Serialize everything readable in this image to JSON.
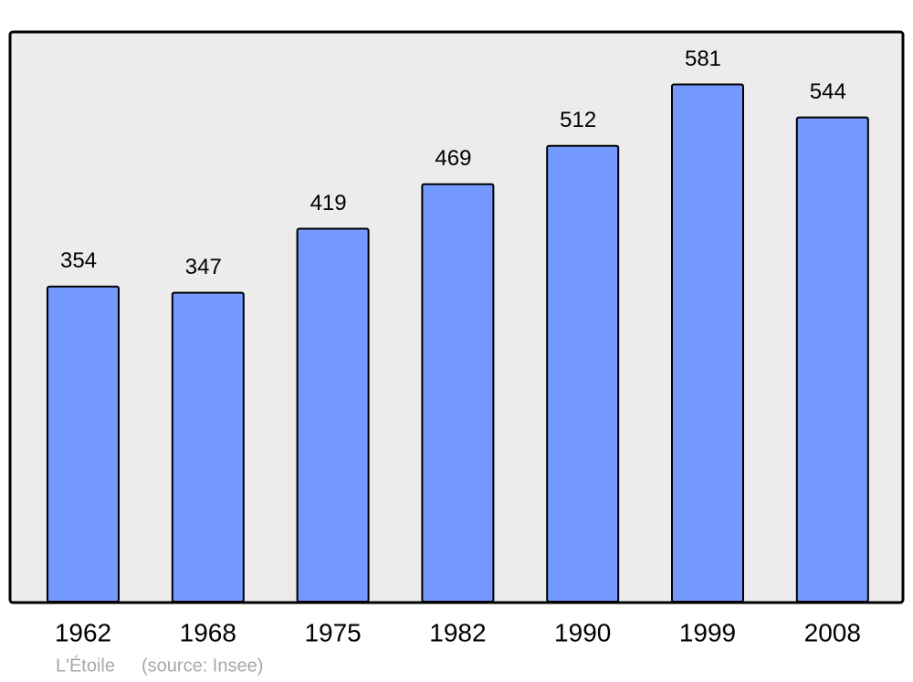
{
  "chart_data": {
    "type": "bar",
    "categories": [
      "1962",
      "1968",
      "1975",
      "1982",
      "1990",
      "1999",
      "2008"
    ],
    "values": [
      354,
      347,
      419,
      469,
      512,
      581,
      544
    ],
    "color": "#7399ff",
    "ylim": [
      0,
      640
    ],
    "footer": {
      "place": "L'Étoile",
      "source": "(source: Insee)"
    }
  }
}
